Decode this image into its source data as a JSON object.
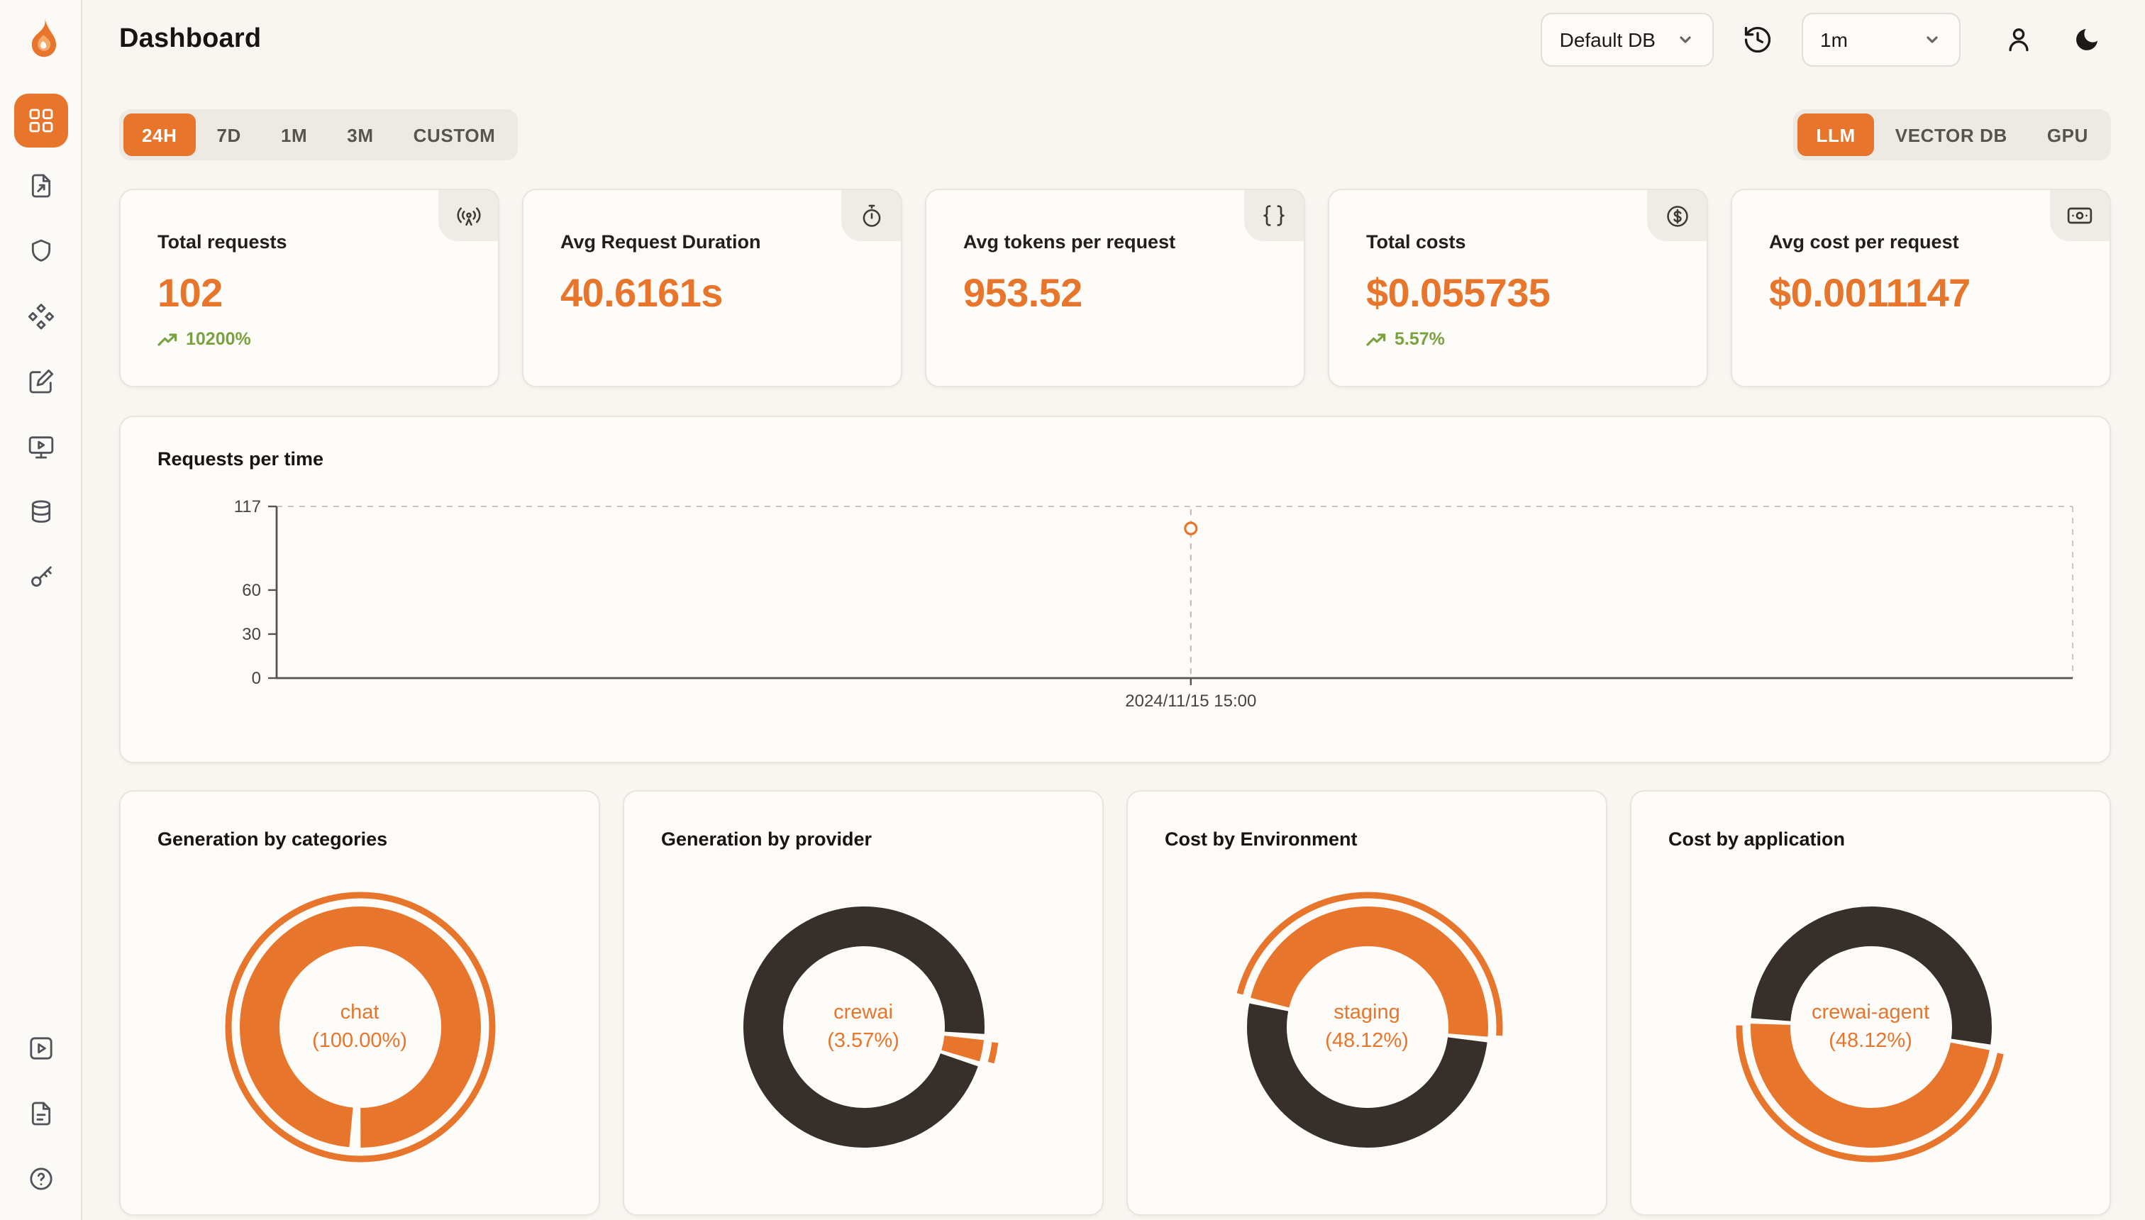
{
  "app": {
    "title": "Dashboard"
  },
  "header": {
    "db_select": {
      "value": "Default DB"
    },
    "refresh_interval_select": {
      "value": "1m"
    },
    "icons": [
      "history-icon",
      "user-icon",
      "moon-icon"
    ]
  },
  "sidebar": {
    "items": [
      {
        "icon": "dashboard-grid-icon",
        "active": true
      },
      {
        "icon": "file-arrow-icon",
        "active": false
      },
      {
        "icon": "shield-icon",
        "active": false
      },
      {
        "icon": "diamonds-icon",
        "active": false
      },
      {
        "icon": "pencil-square-icon",
        "active": false
      },
      {
        "icon": "monitor-play-icon",
        "active": false
      },
      {
        "icon": "database-icon",
        "active": false
      },
      {
        "icon": "key-icon",
        "active": false
      }
    ],
    "bottom_items": [
      {
        "icon": "play-square-icon"
      },
      {
        "icon": "docs-icon"
      },
      {
        "icon": "help-icon"
      }
    ]
  },
  "filters": {
    "time_ranges": [
      {
        "label": "24H",
        "active": true
      },
      {
        "label": "7D",
        "active": false
      },
      {
        "label": "1M",
        "active": false
      },
      {
        "label": "3M",
        "active": false
      },
      {
        "label": "CUSTOM",
        "active": false
      }
    ],
    "sources": [
      {
        "label": "LLM",
        "active": true
      },
      {
        "label": "VECTOR DB",
        "active": false
      },
      {
        "label": "GPU",
        "active": false
      }
    ]
  },
  "stats": [
    {
      "label": "Total requests",
      "value": "102",
      "trend": "10200%",
      "icon": "signal-icon"
    },
    {
      "label": "Avg Request Duration",
      "value": "40.6161s",
      "icon": "timer-icon"
    },
    {
      "label": "Avg tokens per request",
      "value": "953.52",
      "icon": "braces-icon"
    },
    {
      "label": "Total costs",
      "value": "$0.055735",
      "trend": "5.57%",
      "icon": "dollar-circle-icon"
    },
    {
      "label": "Avg cost per request",
      "value": "$0.0011147",
      "icon": "banknote-icon"
    }
  ],
  "chart_data": {
    "requests_per_time": {
      "type": "line",
      "title": "Requests per time",
      "x": [
        "2024/11/15 15:00"
      ],
      "values": [
        102
      ],
      "ylim": [
        0,
        117
      ],
      "yticks": [
        0,
        30,
        60,
        117
      ],
      "grid": "dashed-border",
      "point_color": "#e8752c"
    },
    "donuts": [
      {
        "type": "pie",
        "title": "Generation by categories",
        "center_label": "chat",
        "center_pct": "(100.00%)",
        "start_angle": 183,
        "highlight_index": 0,
        "segments": [
          {
            "label": "chat",
            "value": 100,
            "color": "#e8752c"
          }
        ]
      },
      {
        "type": "pie",
        "title": "Generation by provider",
        "center_label": "crewai",
        "center_pct": "(3.57%)",
        "start_angle": 108,
        "highlight_index": 1,
        "segments": [
          {
            "value": 96.43,
            "color": "#37302a"
          },
          {
            "label": "crewai",
            "value": 3.57,
            "color": "#e8752c"
          }
        ]
      },
      {
        "type": "pie",
        "title": "Cost by Environment",
        "center_label": "staging",
        "center_pct": "(48.12%)",
        "start_angle": 283,
        "highlight_index": 0,
        "segments": [
          {
            "label": "staging",
            "value": 48.12,
            "color": "#e8752c"
          },
          {
            "value": 51.88,
            "color": "#37302a"
          }
        ]
      },
      {
        "type": "pie",
        "title": "Cost by application",
        "center_label": "crewai-agent",
        "center_pct": "(48.12%)",
        "start_angle": 100,
        "highlight_index": 0,
        "segments": [
          {
            "label": "crewai-agent",
            "value": 48.12,
            "color": "#e8752c"
          },
          {
            "value": 51.88,
            "color": "#37302a"
          }
        ]
      }
    ]
  },
  "colors": {
    "accent": "#e8752c",
    "dark": "#37302a",
    "positive": "#79a33e",
    "card_bg": "#fdfcf9"
  }
}
